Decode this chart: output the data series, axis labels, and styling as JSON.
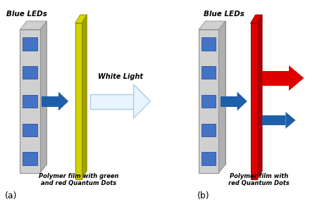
{
  "bg_color": "#ffffff",
  "title_a": "Blue LEDs",
  "title_b": "Blue LEDs",
  "label_a": "Polymer film with green\nand red Quantum Dots",
  "label_b": "Polymer film with\nred Quantum Dots",
  "label_a_panel": "(a)",
  "label_b_panel": "(b)",
  "white_light_label": "White Light",
  "led_body_color": "#d0d0d0",
  "led_body_side_color": "#b0b0b0",
  "led_body_edge": "#909090",
  "led_chip_color": "#4472c4",
  "led_chip_edge": "#2a55a0",
  "film_a_color": "#d4d400",
  "film_a_side_color": "#a0a000",
  "film_a_edge": "#888800",
  "film_b_color": "#dd0000",
  "film_b_side_color": "#aa0000",
  "film_b_edge": "#880000",
  "blue_arrow_color": "#1f5faa",
  "red_arrow_color": "#dd0000",
  "white_arrow_fill": "#e8f4ff",
  "white_arrow_edge": "#b0cce0"
}
